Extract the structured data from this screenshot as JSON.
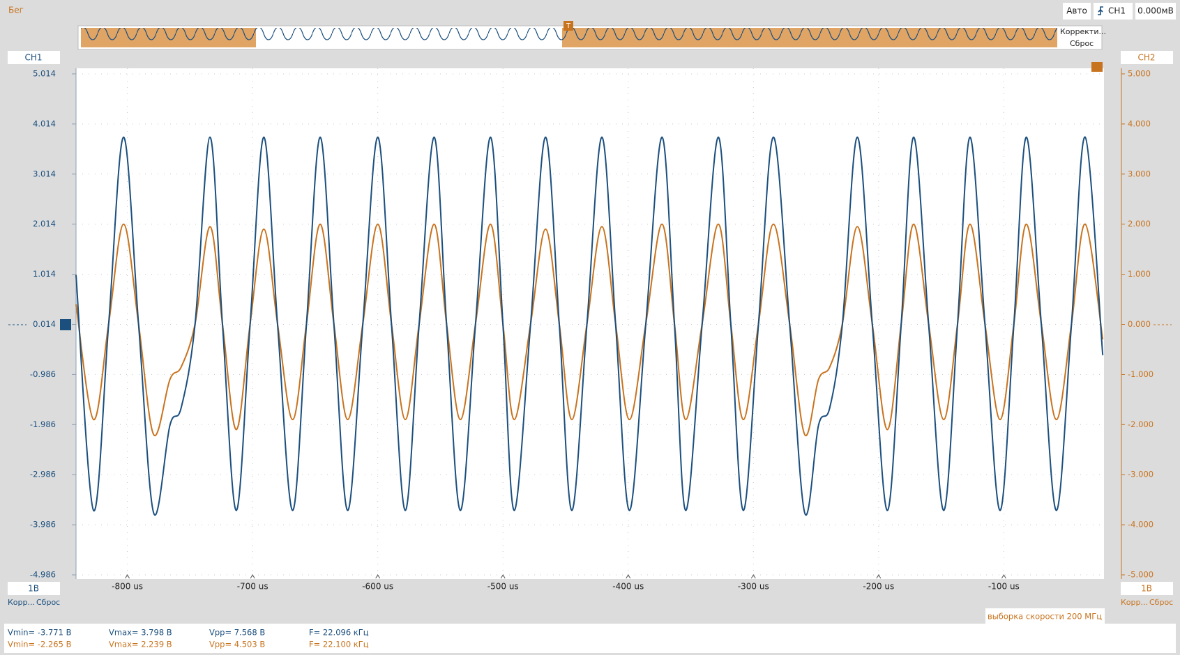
{
  "toolbar": {
    "run_state": "Бег",
    "mode": "Авто",
    "trigger_source": "CH1",
    "trigger_level": "0.000мВ"
  },
  "overview": {
    "correct": "Корректи...",
    "reset": "Сброс"
  },
  "ch1_panel": {
    "scale": "1В",
    "correct": "Корр...",
    "reset": "Сброс"
  },
  "ch2_panel": {
    "scale": "1В",
    "correct": "Корр...",
    "reset": "Сброс"
  },
  "sample_rate": "выборка скорости 200 МГц",
  "measurements": {
    "rows": [
      [
        "Vmin= -3.771 В",
        "Vmax= 3.798 В",
        "Vpp= 7.568 В",
        "F= 22.096 кГц"
      ],
      [
        "Vmin= -2.265 В",
        "Vmax= 2.239 В",
        "Vpp= 4.503 В",
        "F= 22.100 кГц"
      ]
    ]
  },
  "chart_data": {
    "type": "line",
    "x": [
      -841,
      -827,
      -815,
      -803,
      -791,
      -779,
      -766,
      -757,
      -746,
      -734,
      -724,
      -713,
      -702,
      -691,
      -680,
      -668,
      -657,
      -646,
      -635,
      -624,
      -612,
      -600,
      -589,
      -578,
      -567,
      -555,
      -545,
      -534,
      -522,
      -510,
      -500,
      -491,
      -478,
      -466,
      -455,
      -445,
      -433,
      -421,
      -410,
      -399,
      -386,
      -373,
      -363,
      -354,
      -341,
      -328,
      -318,
      -308,
      -296,
      -284,
      -271,
      -259,
      -248,
      -239,
      -229,
      -217,
      -205,
      -193,
      -182,
      -172,
      -160,
      -148,
      -137,
      -127,
      -115,
      -103,
      -92,
      -82,
      -70,
      -58,
      -46,
      -35,
      -21
    ],
    "series": [
      {
        "name": "CH1",
        "color": "#1b4f7e",
        "values": [
          1.0,
          -3.7,
          0,
          3.75,
          0,
          -3.75,
          -2.0,
          -1.65,
          0,
          3.75,
          0,
          -3.7,
          0,
          3.75,
          0,
          -3.7,
          0,
          3.75,
          0,
          -3.7,
          0,
          3.75,
          0,
          -3.7,
          0,
          3.75,
          0,
          -3.7,
          0,
          3.75,
          0,
          -3.7,
          0,
          3.75,
          0,
          -3.7,
          0,
          3.75,
          0,
          -3.7,
          0,
          3.75,
          0,
          -3.7,
          0,
          3.75,
          0,
          -3.7,
          0,
          3.75,
          0,
          -3.75,
          -2.0,
          -1.65,
          0,
          3.75,
          0,
          -3.7,
          0,
          3.75,
          0,
          -3.7,
          0,
          3.75,
          0,
          -3.7,
          0,
          3.75,
          0,
          -3.7,
          0,
          3.75,
          -0.6
        ]
      },
      {
        "name": "CH2",
        "color": "#c8731e",
        "axis": "y2",
        "values": [
          0.4,
          -1.9,
          0,
          2.0,
          0,
          -2.2,
          -1.1,
          -0.85,
          0,
          1.95,
          0,
          -2.1,
          0,
          1.9,
          0,
          -1.9,
          0,
          2.0,
          0,
          -1.9,
          0,
          2.0,
          0,
          -1.9,
          0,
          2.0,
          0,
          -1.9,
          0,
          2.0,
          0,
          -1.9,
          0,
          1.9,
          0,
          -1.9,
          0,
          1.95,
          0,
          -1.9,
          0,
          2.0,
          0,
          -1.9,
          0,
          2.0,
          0,
          -1.9,
          0,
          2.0,
          0,
          -2.2,
          -1.1,
          -0.85,
          0,
          1.95,
          0,
          -2.1,
          0,
          2.0,
          0,
          -1.9,
          0,
          2.0,
          0,
          -1.9,
          0,
          2.0,
          0,
          -1.9,
          0,
          2.0,
          -0.3
        ]
      }
    ],
    "xlim": [
      -841,
      -20
    ],
    "xticks": [
      {
        "value": -800,
        "label": "-800 us"
      },
      {
        "value": -700,
        "label": "-700 us"
      },
      {
        "value": -600,
        "label": "-600 us"
      },
      {
        "value": -500,
        "label": "-500 us"
      },
      {
        "value": -400,
        "label": "-400 us"
      },
      {
        "value": -300,
        "label": "-300 us"
      },
      {
        "value": -200,
        "label": "-200 us"
      },
      {
        "value": -100,
        "label": "-100 us"
      }
    ],
    "ylim": [
      -4.986,
      5.014
    ],
    "yticks": [
      5.014,
      4.014,
      3.014,
      2.014,
      1.014,
      0.014,
      -0.986,
      -1.986,
      -2.986,
      -3.986,
      -4.986
    ],
    "y2lim": [
      -5,
      5
    ],
    "y2ticks": [
      {
        "value": 5,
        "label": "5.000"
      },
      {
        "value": 4,
        "label": "4.000"
      },
      {
        "value": 3,
        "label": "3.000"
      },
      {
        "value": 2,
        "label": "2.000"
      },
      {
        "value": 1,
        "label": "1.000"
      },
      {
        "value": 0,
        "label": "0.000"
      },
      {
        "value": -1,
        "label": "-1.000"
      },
      {
        "value": -2,
        "label": "-2.000"
      },
      {
        "value": -3,
        "label": "-3.000"
      },
      {
        "value": -4,
        "label": "-4.000"
      },
      {
        "value": -5,
        "label": "-5.000"
      }
    ],
    "grid": true
  }
}
